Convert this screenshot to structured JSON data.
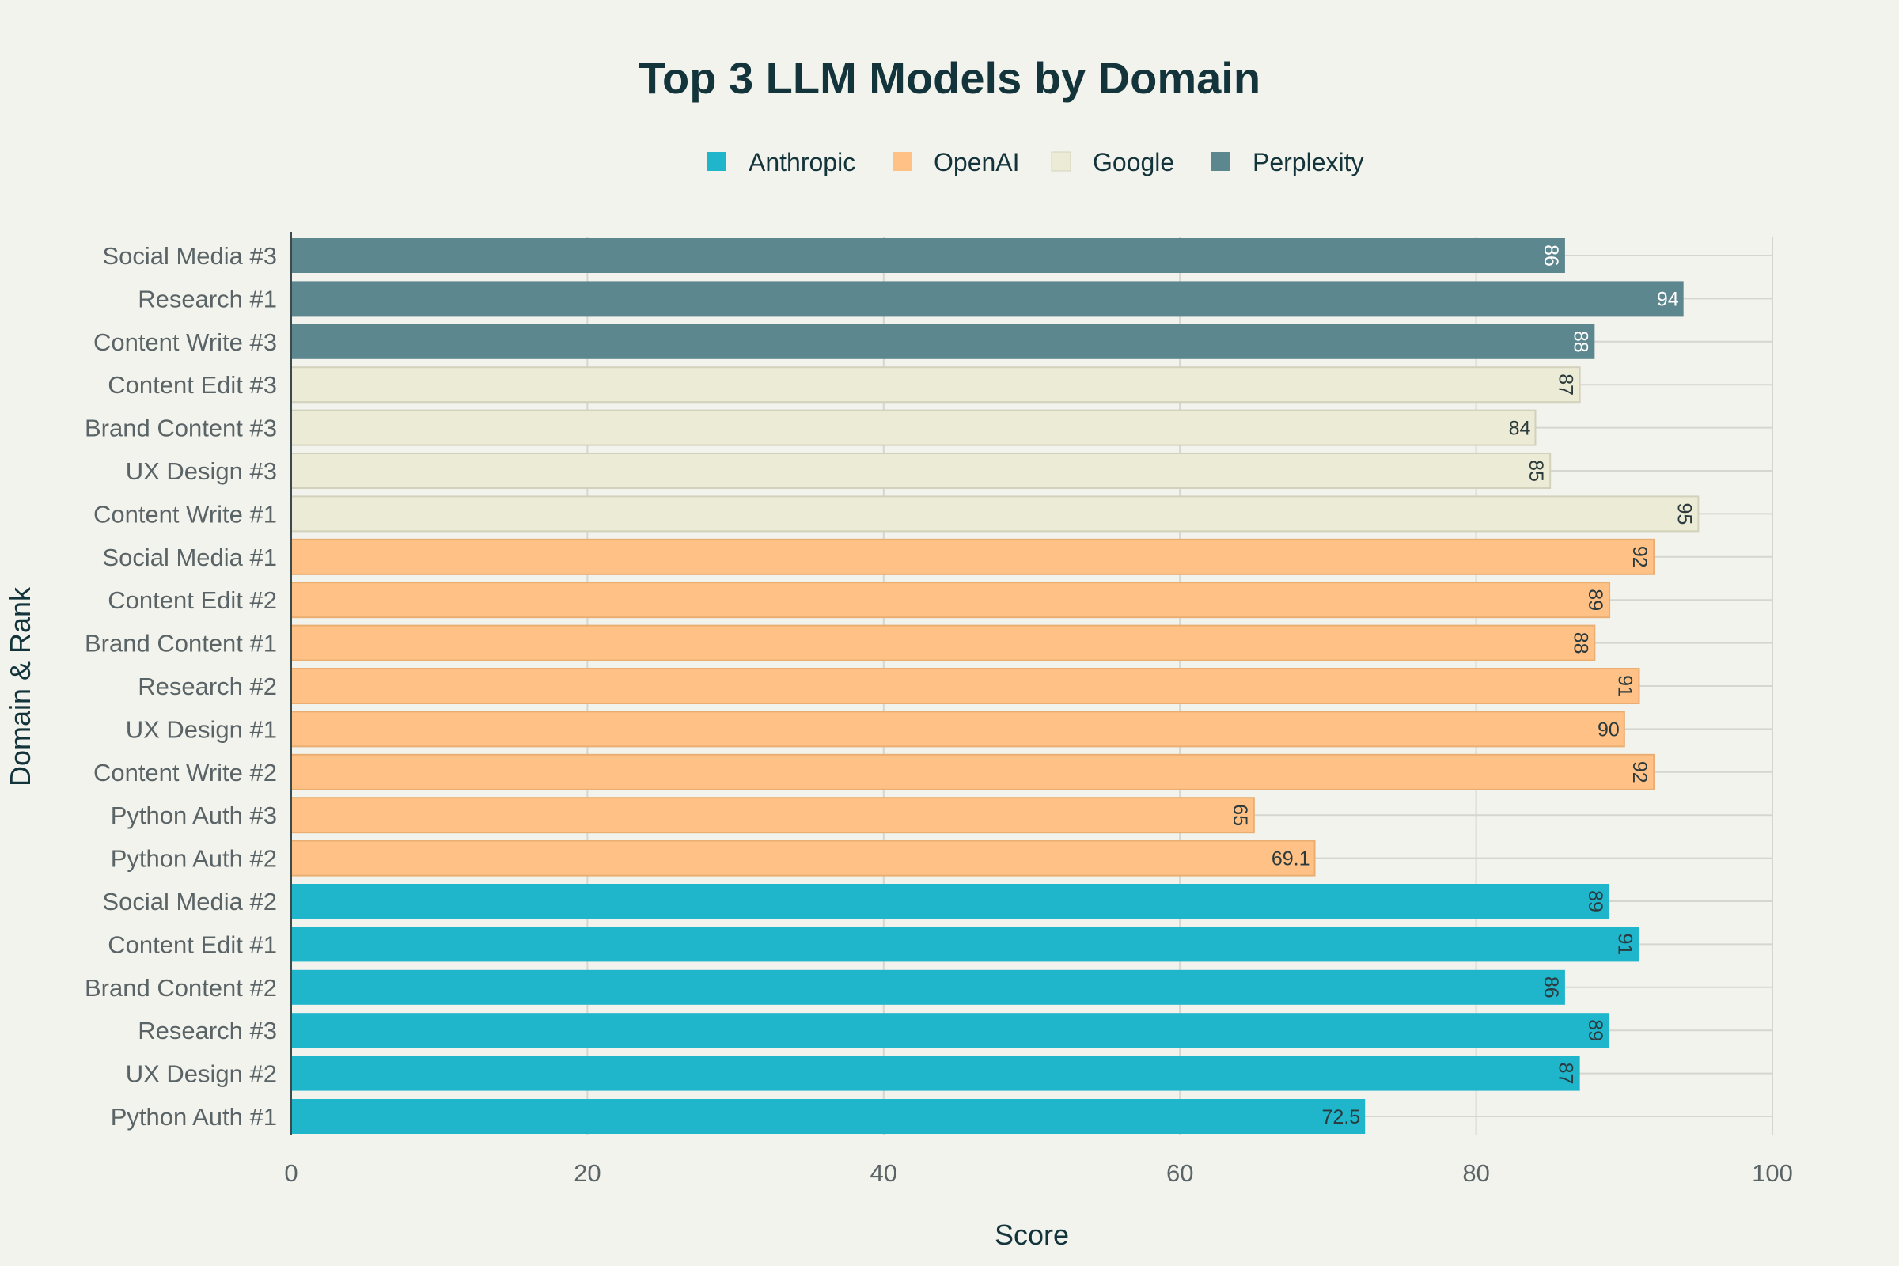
{
  "chart_data": {
    "type": "bar",
    "orientation": "horizontal",
    "title": "Top 3 LLM Models by Domain",
    "xlabel": "Score",
    "ylabel": "Domain & Rank",
    "xlim": [
      0,
      100
    ],
    "x_ticks": [
      0,
      20,
      40,
      60,
      80,
      100
    ],
    "grid": true,
    "legend_position": "top-center",
    "legend": [
      {
        "name": "Anthropic",
        "color": "#1fb5cb"
      },
      {
        "name": "OpenAI",
        "color": "#ffc185"
      },
      {
        "name": "Google",
        "color": "#ecebd5"
      },
      {
        "name": "Perplexity",
        "color": "#5d878f"
      }
    ],
    "bars": [
      {
        "category": "Social Media #3",
        "value": 86,
        "label": "86",
        "series": "Perplexity",
        "label_rotated": true
      },
      {
        "category": "Research #1",
        "value": 94,
        "label": "94",
        "series": "Perplexity",
        "label_rotated": false
      },
      {
        "category": "Content Write #3",
        "value": 88,
        "label": "88",
        "series": "Perplexity",
        "label_rotated": true
      },
      {
        "category": "Content Edit #3",
        "value": 87,
        "label": "87",
        "series": "Google",
        "label_rotated": true
      },
      {
        "category": "Brand Content #3",
        "value": 84,
        "label": "84",
        "series": "Google",
        "label_rotated": false
      },
      {
        "category": "UX Design #3",
        "value": 85,
        "label": "85",
        "series": "Google",
        "label_rotated": true
      },
      {
        "category": "Content Write #1",
        "value": 95,
        "label": "95",
        "series": "Google",
        "label_rotated": true
      },
      {
        "category": "Social Media #1",
        "value": 92,
        "label": "92",
        "series": "OpenAI",
        "label_rotated": true
      },
      {
        "category": "Content Edit #2",
        "value": 89,
        "label": "89",
        "series": "OpenAI",
        "label_rotated": true
      },
      {
        "category": "Brand Content #1",
        "value": 88,
        "label": "88",
        "series": "OpenAI",
        "label_rotated": true
      },
      {
        "category": "Research #2",
        "value": 91,
        "label": "91",
        "series": "OpenAI",
        "label_rotated": true
      },
      {
        "category": "UX Design #1",
        "value": 90,
        "label": "90",
        "series": "OpenAI",
        "label_rotated": false
      },
      {
        "category": "Content Write #2",
        "value": 92,
        "label": "92",
        "series": "OpenAI",
        "label_rotated": true
      },
      {
        "category": "Python Auth #3",
        "value": 65,
        "label": "65",
        "series": "OpenAI",
        "label_rotated": true
      },
      {
        "category": "Python Auth #2",
        "value": 69.1,
        "label": "69.1",
        "series": "OpenAI",
        "label_rotated": false
      },
      {
        "category": "Social Media #2",
        "value": 89,
        "label": "89",
        "series": "Anthropic",
        "label_rotated": true
      },
      {
        "category": "Content Edit #1",
        "value": 91,
        "label": "91",
        "series": "Anthropic",
        "label_rotated": true
      },
      {
        "category": "Brand Content #2",
        "value": 86,
        "label": "86",
        "series": "Anthropic",
        "label_rotated": true
      },
      {
        "category": "Research #3",
        "value": 89,
        "label": "89",
        "series": "Anthropic",
        "label_rotated": true
      },
      {
        "category": "UX Design #2",
        "value": 87,
        "label": "87",
        "series": "Anthropic",
        "label_rotated": true
      },
      {
        "category": "Python Auth #1",
        "value": 72.5,
        "label": "72.5",
        "series": "Anthropic",
        "label_rotated": false
      }
    ]
  }
}
